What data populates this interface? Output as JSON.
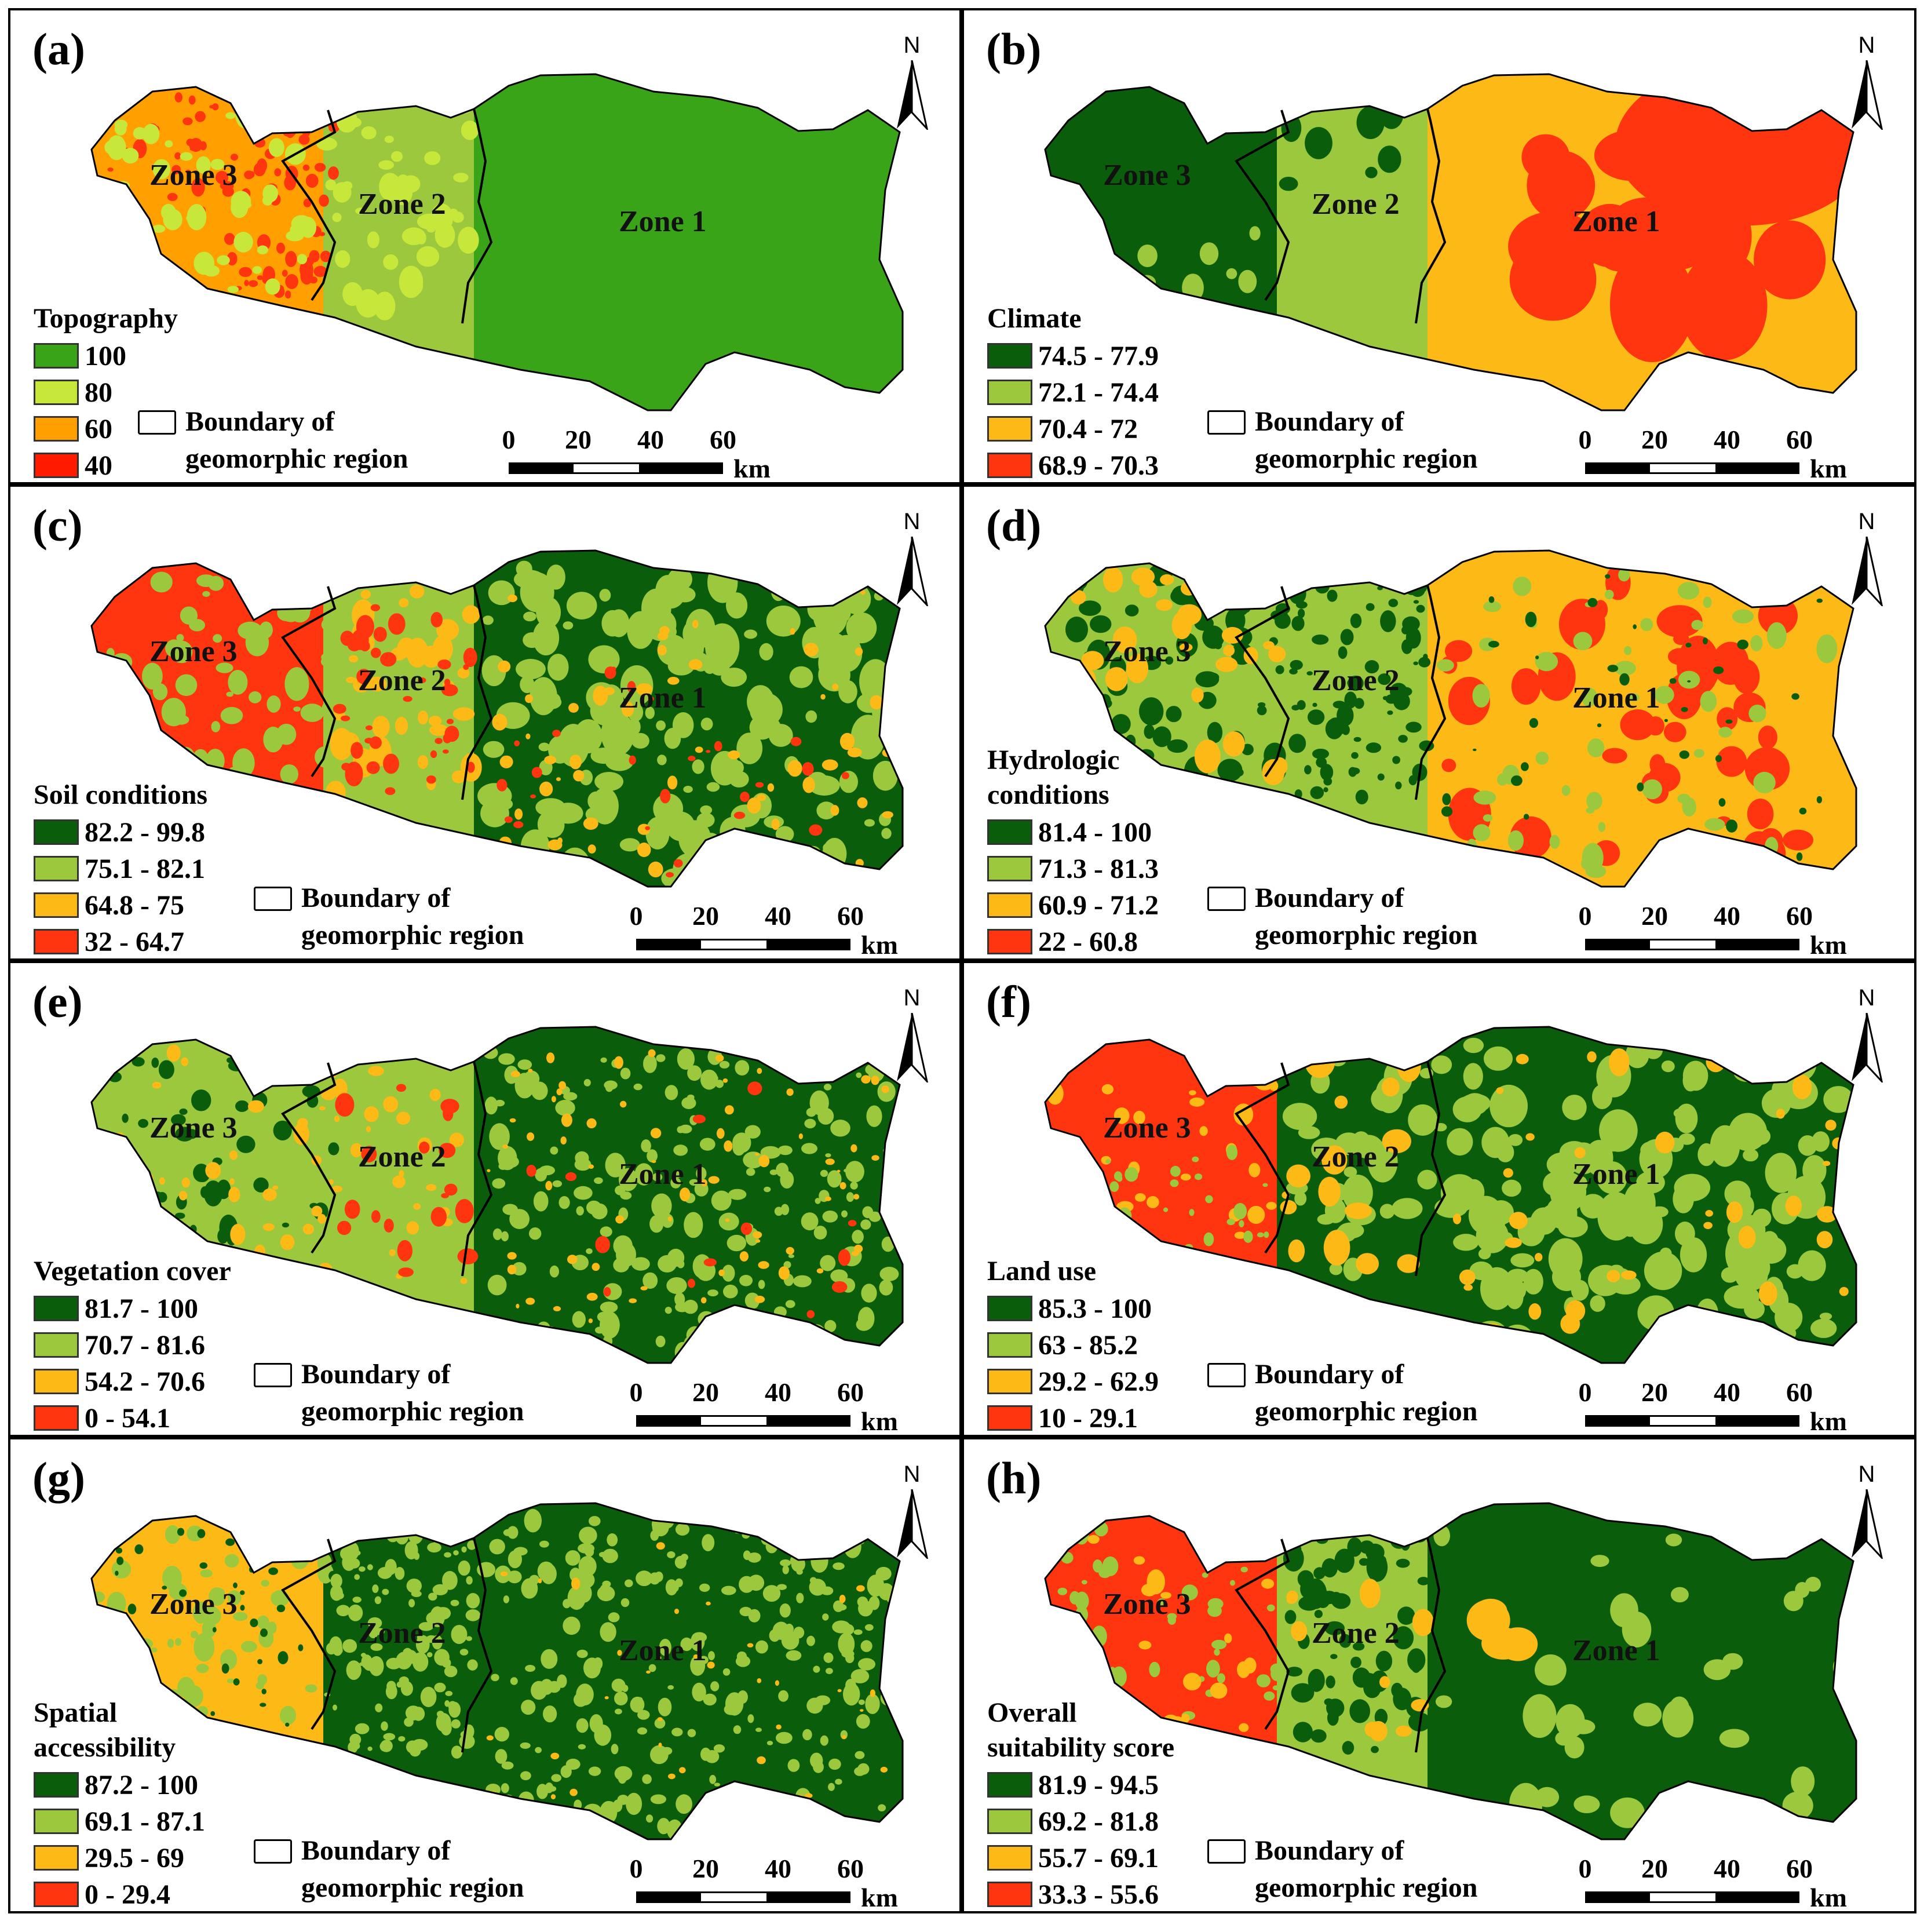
{
  "colors": {
    "dark_green": "#0a5d0a",
    "mid_green": "#3aa418",
    "light_green": "#9bc83c",
    "lime": "#c7e83a",
    "yellow": "#fdb915",
    "orange": "#ffa000",
    "red": "#ff3510"
  },
  "common": {
    "boundary_line1": "Boundary of",
    "boundary_line2": "geomorphic region",
    "scale_ticks": [
      "0",
      "20",
      "40",
      "60"
    ],
    "scale_unit": "km",
    "north": "N",
    "zones": [
      "Zone 1",
      "Zone 2",
      "Zone 3"
    ]
  },
  "panels": [
    {
      "label": "(a)",
      "legend_title": [
        "Topography"
      ],
      "legend": [
        {
          "label": "100",
          "color": "#3aa418"
        },
        {
          "label": "80",
          "color": "#c7e83a"
        },
        {
          "label": "60",
          "color": "#ffa000"
        },
        {
          "label": "40",
          "color": "#ff1a00"
        }
      ]
    },
    {
      "label": "(b)",
      "legend_title": [
        "Climate"
      ],
      "legend": [
        {
          "label": "74.5 - 77.9",
          "color": "#0a5d0a"
        },
        {
          "label": "72.1 - 74.4",
          "color": "#9bc83c"
        },
        {
          "label": "70.4 - 72",
          "color": "#fdb915"
        },
        {
          "label": "68.9 - 70.3",
          "color": "#ff3510"
        }
      ]
    },
    {
      "label": "(c)",
      "legend_title": [
        "Soil conditions"
      ],
      "legend": [
        {
          "label": "82.2 - 99.8",
          "color": "#0a5d0a"
        },
        {
          "label": "75.1 - 82.1",
          "color": "#9bc83c"
        },
        {
          "label": "64.8 - 75",
          "color": "#fdb915"
        },
        {
          "label": "32 - 64.7",
          "color": "#ff3510"
        }
      ]
    },
    {
      "label": "(d)",
      "legend_title": [
        "Hydrologic",
        "conditions"
      ],
      "legend": [
        {
          "label": "81.4 - 100",
          "color": "#0a5d0a"
        },
        {
          "label": "71.3 - 81.3",
          "color": "#9bc83c"
        },
        {
          "label": "60.9 - 71.2",
          "color": "#fdb915"
        },
        {
          "label": "22 - 60.8",
          "color": "#ff3510"
        }
      ]
    },
    {
      "label": "(e)",
      "legend_title": [
        "Vegetation cover"
      ],
      "legend": [
        {
          "label": "81.7 - 100",
          "color": "#0a5d0a"
        },
        {
          "label": "70.7 - 81.6",
          "color": "#9bc83c"
        },
        {
          "label": "54.2 - 70.6",
          "color": "#fdb915"
        },
        {
          "label": "0 - 54.1",
          "color": "#ff3510"
        }
      ]
    },
    {
      "label": "(f)",
      "legend_title": [
        "Land use"
      ],
      "legend": [
        {
          "label": "85.3 - 100",
          "color": "#0a5d0a"
        },
        {
          "label": "63 - 85.2",
          "color": "#9bc83c"
        },
        {
          "label": "29.2 - 62.9",
          "color": "#fdb915"
        },
        {
          "label": "10 - 29.1",
          "color": "#ff3510"
        }
      ]
    },
    {
      "label": "(g)",
      "legend_title": [
        "Spatial",
        "accessibility"
      ],
      "legend": [
        {
          "label": "87.2 - 100",
          "color": "#0a5d0a"
        },
        {
          "label": "69.1 - 87.1",
          "color": "#9bc83c"
        },
        {
          "label": "29.5 - 69",
          "color": "#fdb915"
        },
        {
          "label": "0 - 29.4",
          "color": "#ff3510"
        }
      ]
    },
    {
      "label": "(h)",
      "legend_title": [
        "Overall",
        "suitability score"
      ],
      "legend": [
        {
          "label": "81.9 - 94.5",
          "color": "#0a5d0a"
        },
        {
          "label": "69.2 - 81.8",
          "color": "#9bc83c"
        },
        {
          "label": "55.7 - 69.1",
          "color": "#fdb915"
        },
        {
          "label": "33.3 - 55.6",
          "color": "#ff3510"
        }
      ]
    }
  ]
}
